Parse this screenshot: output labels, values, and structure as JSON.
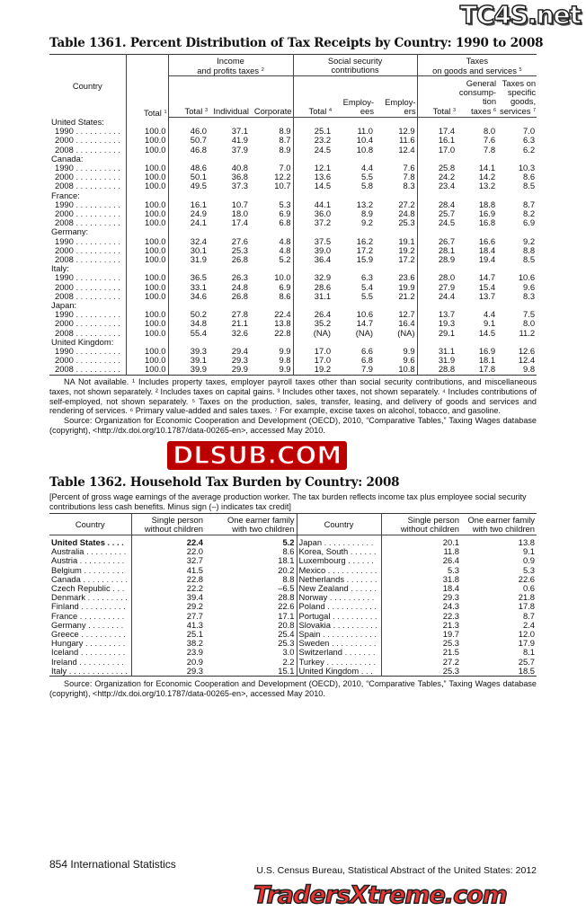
{
  "table1361": {
    "title": "Table 1361. Percent Distribution of Tax Receipts by Country: 1990 to 2008",
    "headers": {
      "country": "Country",
      "total": "Total",
      "total_sup": "1",
      "income_group": "Income",
      "income_group2": "and profits taxes",
      "income_sup": "2",
      "ss_group": "Social security",
      "ss_group2": "contributions",
      "goods_group": "Taxes",
      "goods_group2": "on goods and services",
      "goods_sup": "5",
      "inc_total": "Total",
      "inc_total_sup": "3",
      "individual": "Individual",
      "corporate": "Corporate",
      "ss_total": "Total",
      "ss_total_sup": "4",
      "employees": "Employ-\nees",
      "employers": "Employ-\ners",
      "g_total": "Total",
      "g_total_sup": "3",
      "general": "General\nconsump-\ntion\ntaxes",
      "general_sup": "6",
      "specific": "Taxes on\nspecific\ngoods,\nservices",
      "specific_sup": "7"
    },
    "countries": [
      {
        "name": "United States:",
        "rows": [
          {
            "year": "1990",
            "values": [
              "100.0",
              "46.0",
              "37.1",
              "8.9",
              "25.1",
              "11.0",
              "12.9",
              "17.4",
              "8.0",
              "7.0"
            ]
          },
          {
            "year": "2000",
            "values": [
              "100.0",
              "50.7",
              "41.9",
              "8.7",
              "23.2",
              "10.4",
              "11.6",
              "16.1",
              "7.6",
              "6.3"
            ]
          },
          {
            "year": "2008",
            "values": [
              "100.0",
              "46.8",
              "37.9",
              "8.9",
              "24.5",
              "10.8",
              "12.4",
              "17.0",
              "7.8",
              "6.2"
            ]
          }
        ]
      },
      {
        "name": "Canada:",
        "rows": [
          {
            "year": "1990",
            "values": [
              "100.0",
              "48.6",
              "40.8",
              "7.0",
              "12.1",
              "4.4",
              "7.6",
              "25.8",
              "14.1",
              "10.3"
            ]
          },
          {
            "year": "2000",
            "values": [
              "100.0",
              "50.1",
              "36.8",
              "12.2",
              "13.6",
              "5.5",
              "7.8",
              "24.2",
              "14.2",
              "8.6"
            ]
          },
          {
            "year": "2008",
            "values": [
              "100.0",
              "49.5",
              "37.3",
              "10.7",
              "14.5",
              "5.8",
              "8.3",
              "23.4",
              "13.2",
              "8.5"
            ]
          }
        ]
      },
      {
        "name": "France:",
        "rows": [
          {
            "year": "1990",
            "values": [
              "100.0",
              "16.1",
              "10.7",
              "5.3",
              "44.1",
              "13.2",
              "27.2",
              "28.4",
              "18.8",
              "8.7"
            ]
          },
          {
            "year": "2000",
            "values": [
              "100.0",
              "24.9",
              "18.0",
              "6.9",
              "36.0",
              "8.9",
              "24.8",
              "25.7",
              "16.9",
              "8.2"
            ]
          },
          {
            "year": "2008",
            "values": [
              "100.0",
              "24.1",
              "17.4",
              "6.8",
              "37.2",
              "9.2",
              "25.3",
              "24.5",
              "16.8",
              "6.9"
            ]
          }
        ]
      },
      {
        "name": "Germany:",
        "rows": [
          {
            "year": "1990",
            "values": [
              "100.0",
              "32.4",
              "27.6",
              "4.8",
              "37.5",
              "16.2",
              "19.1",
              "26.7",
              "16.6",
              "9.2"
            ]
          },
          {
            "year": "2000",
            "values": [
              "100.0",
              "30.1",
              "25.3",
              "4.8",
              "39.0",
              "17.2",
              "19.2",
              "28.1",
              "18.4",
              "8.8"
            ]
          },
          {
            "year": "2008",
            "values": [
              "100.0",
              "31.9",
              "26.8",
              "5.2",
              "36.4",
              "15.9",
              "17.2",
              "28.9",
              "19.4",
              "8.5"
            ]
          }
        ]
      },
      {
        "name": "Italy:",
        "rows": [
          {
            "year": "1990",
            "values": [
              "100.0",
              "36.5",
              "26.3",
              "10.0",
              "32.9",
              "6.3",
              "23.6",
              "28.0",
              "14.7",
              "10.6"
            ]
          },
          {
            "year": "2000",
            "values": [
              "100.0",
              "33.1",
              "24.8",
              "6.9",
              "28.6",
              "5.4",
              "19.9",
              "27.9",
              "15.4",
              "9.6"
            ]
          },
          {
            "year": "2008",
            "values": [
              "100.0",
              "34.6",
              "26.8",
              "8.6",
              "31.1",
              "5.5",
              "21.2",
              "24.4",
              "13.7",
              "8.3"
            ]
          }
        ]
      },
      {
        "name": "Japan:",
        "rows": [
          {
            "year": "1990",
            "values": [
              "100.0",
              "50.2",
              "27.8",
              "22.4",
              "26.4",
              "10.6",
              "12.7",
              "13.7",
              "4.4",
              "7.5"
            ]
          },
          {
            "year": "2000",
            "values": [
              "100.0",
              "34.8",
              "21.1",
              "13.8",
              "35.2",
              "14.7",
              "16.4",
              "19.3",
              "9.1",
              "8.0"
            ]
          },
          {
            "year": "2008",
            "values": [
              "100.0",
              "55.4",
              "32.6",
              "22.8",
              "(NA)",
              "(NA)",
              "(NA)",
              "29.1",
              "14.5",
              "11.2"
            ]
          }
        ]
      },
      {
        "name": "United Kingdom:",
        "rows": [
          {
            "year": "1990",
            "values": [
              "100.0",
              "39.3",
              "29.4",
              "9.9",
              "17.0",
              "6.6",
              "9.9",
              "31.1",
              "16.9",
              "12.6"
            ]
          },
          {
            "year": "2000",
            "values": [
              "100.0",
              "39.1",
              "29.3",
              "9.8",
              "17.0",
              "6.8",
              "9.6",
              "31.9",
              "18.1",
              "12.4"
            ]
          },
          {
            "year": "2008",
            "values": [
              "100.0",
              "39.9",
              "29.9",
              "9.9",
              "19.2",
              "7.9",
              "10.8",
              "28.8",
              "17.8",
              "9.8"
            ]
          }
        ]
      }
    ],
    "notes": "NA Not available. ¹ Includes property taxes, employer payroll taxes other than social security contributions, and miscellaneous taxes, not shown separately. ² Includes taxes on capital gains. ³ Includes other taxes, not shown separately. ⁴ Includes contributions of self-employed, not shown separately. ⁵ Taxes on the production, sales, transfer, leasing, and delivery of goods and services and rendering of services. ⁶ Primary value-added and sales taxes. ⁷ For example, excise taxes on alcohol, tobacco, and gasoline.",
    "source": "Source: Organization for Economic Cooperation and Development (OECD), 2010, “Comparative Tables,” Taxing Wages database (copyright), <http://dx.doi.org/10.1787/data-00265-en>, accessed May 2010."
  },
  "table1362": {
    "title": "Table 1362. Household Tax Burden by Country: 2008",
    "subtitle": "[Percent of gross wage earnings of the average production worker. The tax burden reflects income tax plus employee social security contributions less cash benefits. Minus sign (–) indicates tax credit]",
    "headers": {
      "country": "Country",
      "single": "Single person\nwithout children",
      "family": "One earner family\nwith two children"
    },
    "left": [
      {
        "country": "United States",
        "single": "22.4",
        "family": "5.2",
        "bold": true
      },
      {
        "country": "Australia",
        "single": "22.0",
        "family": "8.6"
      },
      {
        "country": "Austria",
        "single": "32.7",
        "family": "18.1"
      },
      {
        "country": "Belgium",
        "single": "41.5",
        "family": "20.2"
      },
      {
        "country": "Canada",
        "single": "22.8",
        "family": "8.8"
      },
      {
        "country": "Czech Republic",
        "single": "22.2",
        "family": "–6.5"
      },
      {
        "country": "Denmark",
        "single": "39.4",
        "family": "28.8"
      },
      {
        "country": "Finland",
        "single": "29.2",
        "family": "22.6"
      },
      {
        "country": "France",
        "single": "27.7",
        "family": "17.1"
      },
      {
        "country": "Germany",
        "single": "41.3",
        "family": "20.8"
      },
      {
        "country": "Greece",
        "single": "25.1",
        "family": "25.4"
      },
      {
        "country": "Hungary",
        "single": "38.2",
        "family": "25.3"
      },
      {
        "country": "Iceland",
        "single": "23.9",
        "family": "3.0"
      },
      {
        "country": "Ireland",
        "single": "20.9",
        "family": "2.2"
      },
      {
        "country": "Italy",
        "single": "29.3",
        "family": "15.1"
      }
    ],
    "right": [
      {
        "country": "Japan",
        "single": "20.1",
        "family": "13.8"
      },
      {
        "country": "Korea, South",
        "single": "11.8",
        "family": "9.1"
      },
      {
        "country": "Luxembourg",
        "single": "26.4",
        "family": "0.9"
      },
      {
        "country": "Mexico",
        "single": "5.3",
        "family": "5.3"
      },
      {
        "country": "Netherlands",
        "single": "31.8",
        "family": "22.6"
      },
      {
        "country": "New Zealand",
        "single": "18.4",
        "family": "0.6"
      },
      {
        "country": "Norway",
        "single": "29.3",
        "family": "21.8"
      },
      {
        "country": "Poland",
        "single": "24.3",
        "family": "17.8"
      },
      {
        "country": "Portugal",
        "single": "22.3",
        "family": "8.7"
      },
      {
        "country": "Slovakia",
        "single": "21.3",
        "family": "2.4"
      },
      {
        "country": "Spain",
        "single": "19.7",
        "family": "12.0"
      },
      {
        "country": "Sweden",
        "single": "25.3",
        "family": "17.9"
      },
      {
        "country": "Switzerland",
        "single": "21.5",
        "family": "8.1"
      },
      {
        "country": "Turkey",
        "single": "27.2",
        "family": "25.7"
      },
      {
        "country": "United Kingdom",
        "single": "25.3",
        "family": "18.5"
      }
    ],
    "source": "Source: Organization for Economic Cooperation and Development (OECD), 2010, “Comparative Tables,” Taxing Wages database (copyright), <http://dx.doi.org/10.1787/data-00265-en>, accessed May 2010."
  },
  "footer": {
    "page": "854  International Statistics",
    "publication": "U.S. Census Bureau, Statistical Abstract of the United States: 2012"
  },
  "watermarks": [
    "TC4S.net",
    "DLSUB.COM",
    "TradersXtreme.com"
  ]
}
